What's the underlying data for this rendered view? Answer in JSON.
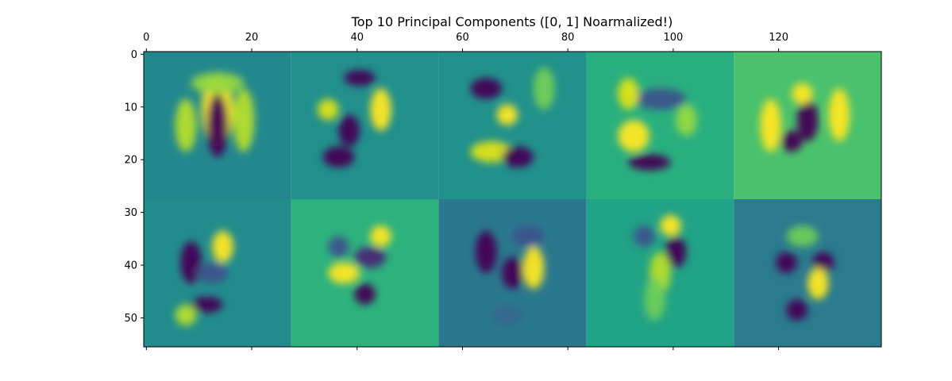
{
  "chart_data": {
    "type": "heatmap",
    "title": "Top 10 Principal Components ([0, 1] Noarmalized!)",
    "xlabel": "",
    "ylabel": "",
    "xlim": [
      -0.5,
      139.5
    ],
    "ylim": [
      55.5,
      -0.5
    ],
    "x_axis_position": "top",
    "grid": false,
    "colormap": "viridis",
    "xticks": [
      0,
      20,
      40,
      60,
      80,
      100,
      120
    ],
    "xtick_labels": [
      "0",
      "20",
      "40",
      "60",
      "80",
      "100",
      "120"
    ],
    "yticks": [
      0,
      10,
      20,
      30,
      40,
      50
    ],
    "ytick_labels": [
      "0",
      "10",
      "20",
      "30",
      "40",
      "50"
    ],
    "grid_layout": {
      "rows": 2,
      "cols": 5,
      "tile_size": 28
    },
    "tiles": [
      {
        "component": 1,
        "background": "#23888e"
      },
      {
        "component": 2,
        "background": "#21908d"
      },
      {
        "component": 3,
        "background": "#21918c"
      },
      {
        "component": 4,
        "background": "#29af7f"
      },
      {
        "component": 5,
        "background": "#4ac16d"
      },
      {
        "component": 6,
        "background": "#228c8d"
      },
      {
        "component": 7,
        "background": "#2db27d"
      },
      {
        "component": 8,
        "background": "#2a788e"
      },
      {
        "component": 9,
        "background": "#20a386"
      },
      {
        "component": 10,
        "background": "#2a7b8e"
      }
    ]
  }
}
